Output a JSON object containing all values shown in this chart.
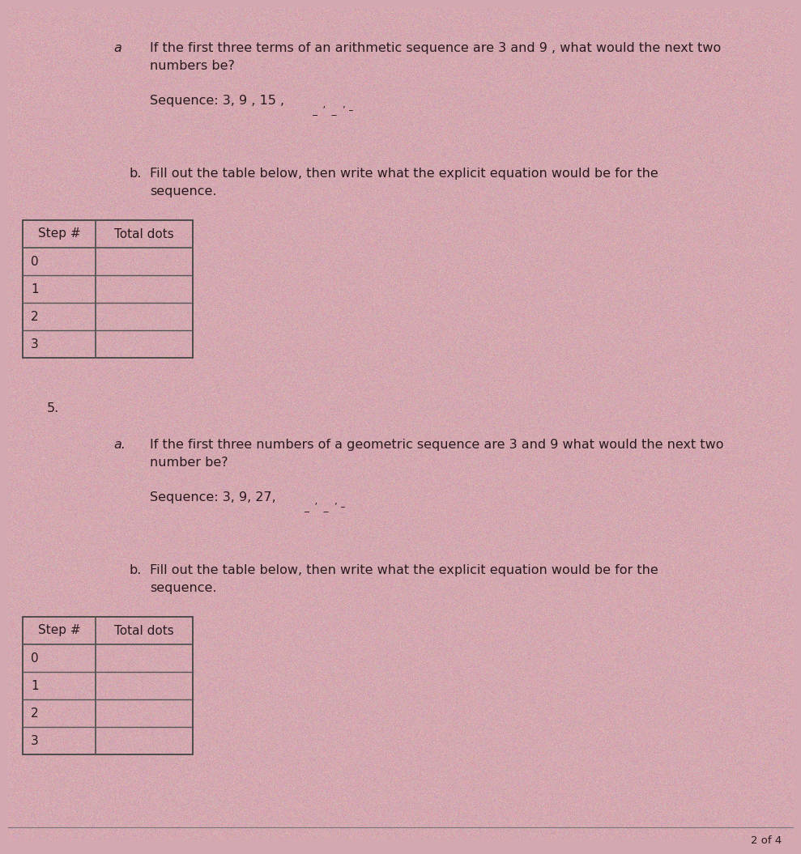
{
  "background_color": "#d4a8b0",
  "text_color": "#2a1a1f",
  "section4_label": "a",
  "section4a_text_line1": "If the first three terms of an arithmetic sequence are 3 and 9 , what would the next two",
  "section4a_text_line2": "numbers be?",
  "section4a_seq": "Sequence: 3, 9 , 15 ,",
  "section4a_seq_suffix": "_  ’  _  ’ –",
  "section4b_label": "b.",
  "section4b_text_line1": "Fill out the table below, then write what the explicit equation would be for the",
  "section4b_text_line2": "sequence.",
  "table1_headers": [
    "Step #",
    "Total dots"
  ],
  "table1_rows": [
    "0",
    "1",
    "2",
    "3"
  ],
  "section5_label": "5.",
  "section5a_label": "a.",
  "section5a_text_line1": "If the first three numbers of a geometric sequence are 3 and 9 what would the next two",
  "section5a_text_line2": "number be?",
  "section5a_seq": "Sequence: 3, 9, 27,",
  "section5a_seq_suffix": "_  ’  _  ’ –",
  "section5b_label": "b.",
  "section5b_text_line1": "Fill out the table below, then write what the explicit equation would be for the",
  "section5b_text_line2": "sequence.",
  "table2_headers": [
    "Step #",
    "Total dots"
  ],
  "table2_rows": [
    "0",
    "1",
    "2",
    "3"
  ],
  "footer_text": "2 of 4",
  "font_size_body": 11.5,
  "font_size_table": 11.0,
  "font_size_footer": 9.5,
  "table_edge_color": "#444444",
  "table_line_color": "#555555"
}
